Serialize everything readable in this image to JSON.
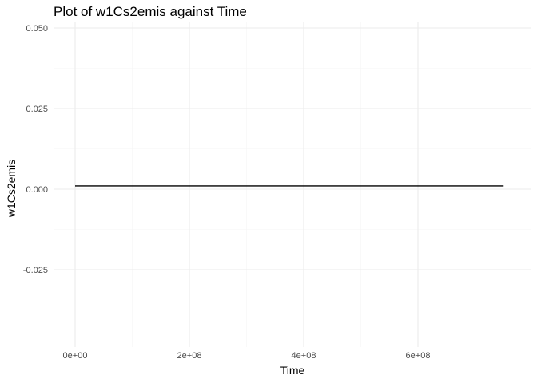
{
  "chart_data": {
    "type": "line",
    "title": "Plot of w1Cs2emis against Time",
    "xlabel": "Time",
    "ylabel": "w1Cs2emis",
    "xlim": [
      0,
      750000000
    ],
    "ylim": [
      -0.0375,
      0.05
    ],
    "x_ticks": [
      {
        "value": 0,
        "label": "0e+00"
      },
      {
        "value": 200000000,
        "label": "2e+08"
      },
      {
        "value": 400000000,
        "label": "4e+08"
      },
      {
        "value": 600000000,
        "label": "6e+08"
      }
    ],
    "y_ticks": [
      {
        "value": 0.05,
        "label": "0.050"
      },
      {
        "value": 0.025,
        "label": "0.025"
      },
      {
        "value": 0.0,
        "label": "0.000"
      },
      {
        "value": -0.025,
        "label": "-0.025"
      }
    ],
    "x_minor": [
      100000000,
      300000000,
      500000000,
      700000000
    ],
    "y_minor": [
      0.0375,
      0.0125,
      -0.0125,
      -0.0375
    ],
    "grid": true,
    "legend": "none",
    "x": [
      0,
      750000000
    ],
    "y": [
      0.001,
      0.001
    ],
    "line_color": "#000000",
    "grid_color": "#ebebeb"
  }
}
